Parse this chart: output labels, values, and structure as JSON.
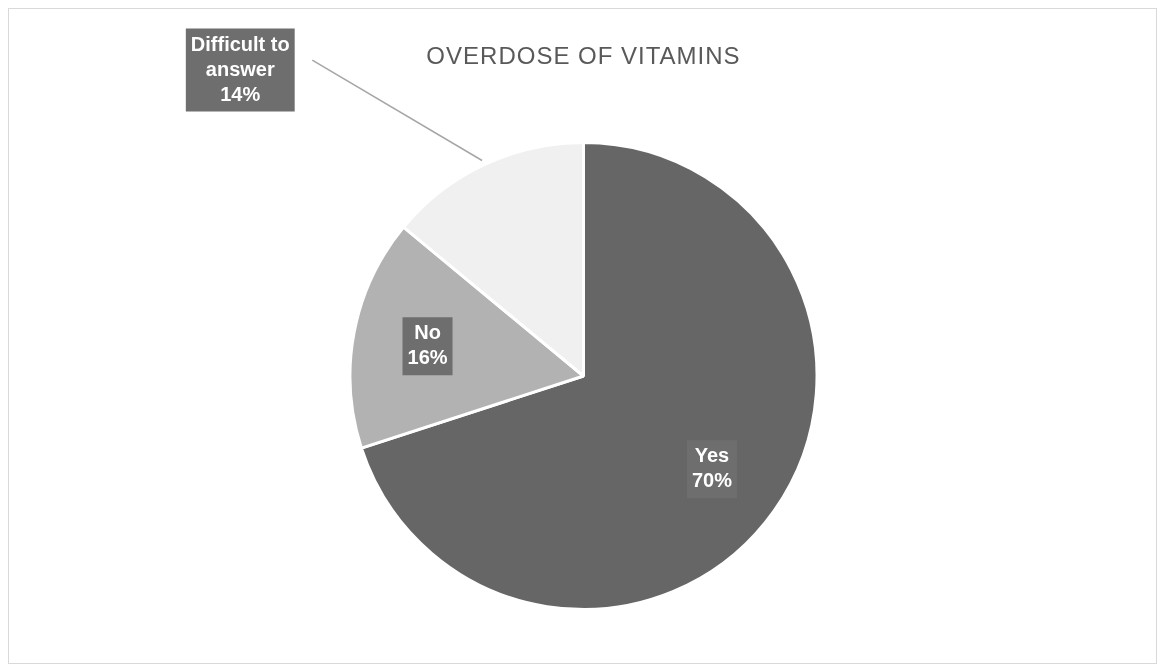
{
  "chart_data": {
    "type": "pie",
    "title": "OVERDOSE OF VITAMINS",
    "categories": [
      "Yes",
      "No",
      "Difficult to answer"
    ],
    "values": [
      70,
      16,
      14
    ],
    "colors": [
      "#666666",
      "#b2b2b2",
      "#f0f0f0"
    ],
    "value_labels": [
      "70%",
      "16%",
      "14%"
    ],
    "legend": false
  }
}
